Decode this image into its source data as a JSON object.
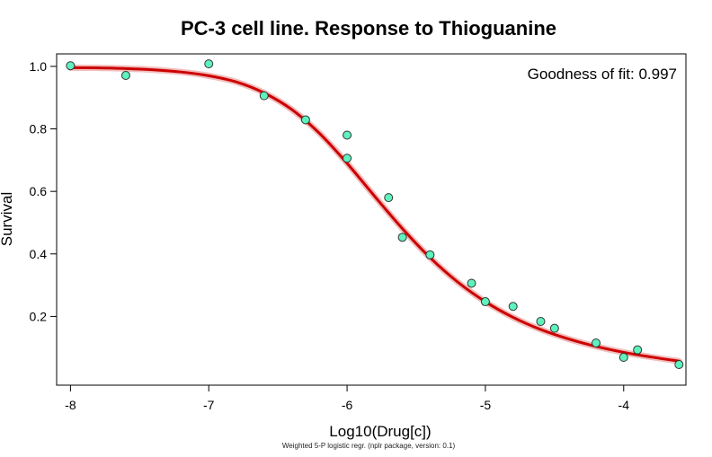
{
  "chart_data": {
    "type": "scatter",
    "title": "PC-3 cell line. Response to Thioguanine",
    "xlabel": "Log10(Drug[c])",
    "ylabel": "Survival",
    "annotation": "Goodness of fit: 0.997",
    "footnote": "Weighted 5-P logistic regr. (nplr package, version: 0.1)",
    "xlim": [
      -8.1,
      -3.55
    ],
    "ylim": [
      -0.02,
      1.04
    ],
    "x_ticks": [
      -8,
      -7,
      -6,
      -5,
      -4
    ],
    "x_tick_labels": [
      "-8",
      "-7",
      "-6",
      "-5",
      "-4"
    ],
    "y_ticks": [
      0.2,
      0.4,
      0.6,
      0.8,
      1.0
    ],
    "y_tick_labels": [
      "0.2",
      "0.4",
      "0.6",
      "0.8",
      "1.0"
    ],
    "grid": false,
    "points": [
      {
        "x": -8.0,
        "y": 1.002
      },
      {
        "x": -7.6,
        "y": 0.971
      },
      {
        "x": -7.0,
        "y": 1.008
      },
      {
        "x": -6.6,
        "y": 0.906
      },
      {
        "x": -6.3,
        "y": 0.829
      },
      {
        "x": -6.0,
        "y": 0.78
      },
      {
        "x": -6.0,
        "y": 0.706
      },
      {
        "x": -5.7,
        "y": 0.58
      },
      {
        "x": -5.6,
        "y": 0.453
      },
      {
        "x": -5.4,
        "y": 0.397
      },
      {
        "x": -5.1,
        "y": 0.306
      },
      {
        "x": -5.0,
        "y": 0.247
      },
      {
        "x": -4.8,
        "y": 0.232
      },
      {
        "x": -4.6,
        "y": 0.184
      },
      {
        "x": -4.5,
        "y": 0.162
      },
      {
        "x": -4.2,
        "y": 0.115
      },
      {
        "x": -4.0,
        "y": 0.069
      },
      {
        "x": -3.9,
        "y": 0.093
      },
      {
        "x": -3.6,
        "y": 0.046
      }
    ],
    "fit_curve": {
      "x": [
        -8.0,
        -7.8,
        -7.6,
        -7.4,
        -7.2,
        -7.0,
        -6.8,
        -6.6,
        -6.4,
        -6.2,
        -6.0,
        -5.8,
        -5.6,
        -5.4,
        -5.2,
        -5.0,
        -4.8,
        -4.6,
        -4.4,
        -4.2,
        -4.0,
        -3.8,
        -3.6
      ],
      "y": [
        0.996,
        0.995,
        0.993,
        0.989,
        0.982,
        0.97,
        0.95,
        0.915,
        0.862,
        0.786,
        0.69,
        0.584,
        0.481,
        0.388,
        0.31,
        0.247,
        0.197,
        0.158,
        0.128,
        0.104,
        0.085,
        0.07,
        0.057
      ]
    },
    "colors": {
      "point_fill": "#5ef2bd",
      "point_stroke": "#333333",
      "curve": "#cc0000",
      "curve_shadow": "#f2bcbc"
    }
  }
}
